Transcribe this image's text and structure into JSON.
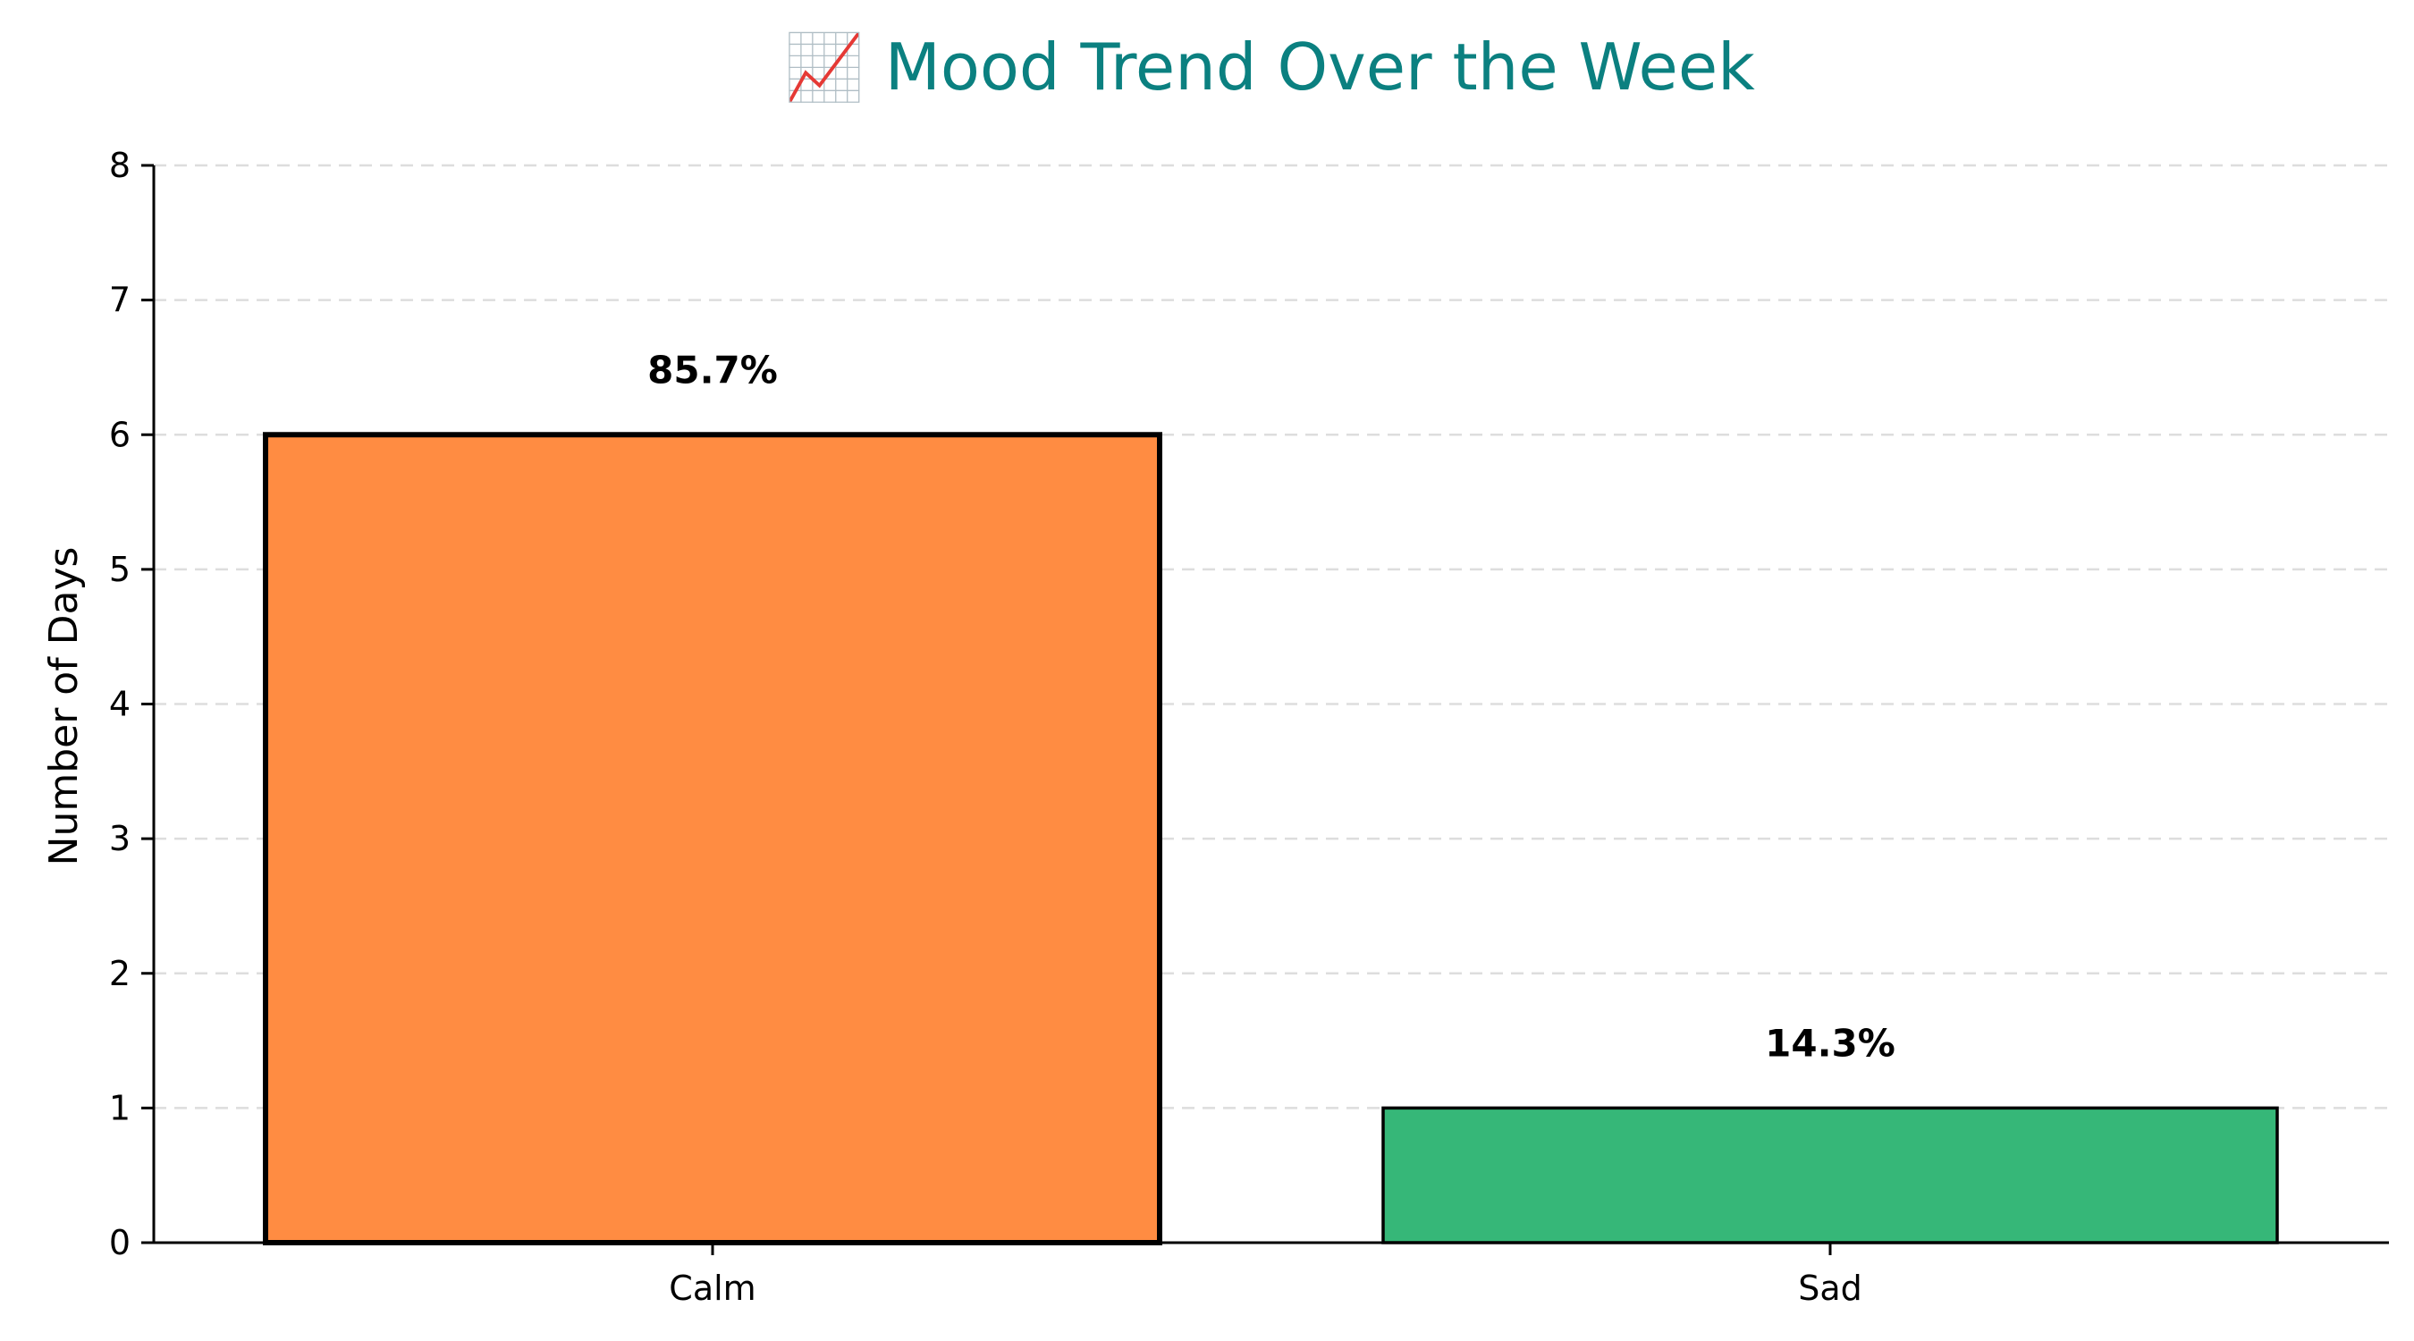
{
  "chart_data": {
    "type": "bar",
    "title": "📈 Mood Trend Over the Week",
    "xlabel": "",
    "ylabel": "Number of Days",
    "categories": [
      "Calm",
      "Sad"
    ],
    "values": [
      6,
      1
    ],
    "data_labels": [
      "85.7%",
      "14.3%"
    ],
    "colors": [
      "#ff8c42",
      "#36b778"
    ],
    "title_color": "#0b8080",
    "ylim": [
      0,
      8
    ],
    "yticks": [
      0,
      1,
      2,
      3,
      4,
      5,
      6,
      7,
      8
    ],
    "grid": "y-dashed",
    "legend": "none"
  }
}
